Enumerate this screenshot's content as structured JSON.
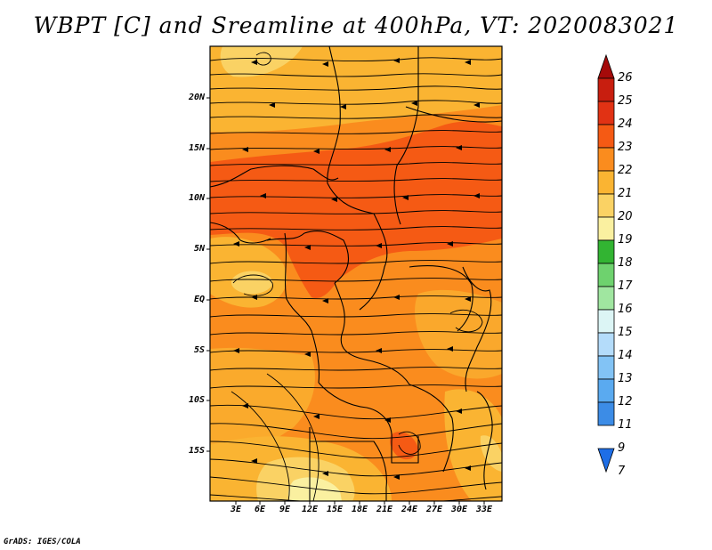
{
  "title": "WBPT [C] and Sreamline at 400hPa, VT: 2020083021",
  "credit": "GrADS: IGES/COLA",
  "map": {
    "lat_labels": [
      "20N",
      "15N",
      "10N",
      "5N",
      "EQ",
      "5S",
      "10S",
      "15S"
    ],
    "lon_labels": [
      "3E",
      "6E",
      "9E",
      "12E",
      "15E",
      "18E",
      "21E",
      "24E",
      "27E",
      "30E",
      "33E"
    ]
  },
  "colorbar": {
    "labels": [
      "26",
      "25",
      "24",
      "23",
      "22",
      "21",
      "20",
      "19",
      "18",
      "17",
      "16",
      "15",
      "14",
      "13",
      "12",
      "11",
      "9",
      "7"
    ],
    "colors": [
      "#a50a0a",
      "#c81e0f",
      "#e13214",
      "#f55a14",
      "#fa8c1e",
      "#fab432",
      "#fad264",
      "#faf0a0",
      "#32b432",
      "#6ed26e",
      "#a0e6a0",
      "#dcf5f5",
      "#b4dcfa",
      "#82c3f5",
      "#5aaaf0",
      "#3c8ce6",
      "#1e6ee6"
    ]
  }
}
